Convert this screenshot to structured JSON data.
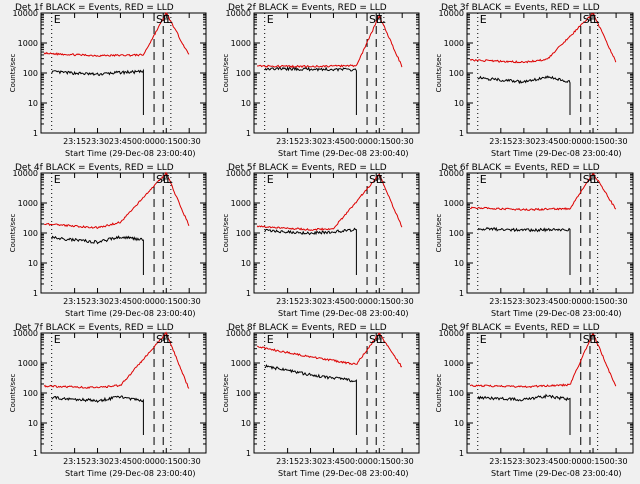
{
  "colors": {
    "events": "#000000",
    "lld": "#dd0000",
    "axes": "#000000",
    "background": "#f0f0f0"
  },
  "chart_data": [
    {
      "type": "line",
      "title": "Det 1f BLACK = Events, RED = LLD",
      "xlabel": "Start Time (29-Dec-08 23:00:40)",
      "ylabel": "Counts/sec",
      "yscale": "log",
      "ylim": [
        1,
        10000
      ],
      "yticks": [
        "1",
        "10",
        "100",
        "1000",
        "10000"
      ],
      "xticks": [
        "23:15",
        "23:30",
        "23:45",
        "00:00",
        "00:15",
        "00:30"
      ],
      "markers": [
        "E",
        "S",
        "E",
        "L"
      ],
      "series": [
        {
          "color": "#000000",
          "approx_values": [
            {
              "t": "23:00",
              "v": 110
            },
            {
              "t": "23:30",
              "v": 90
            },
            {
              "t": "23:45",
              "v": 105
            },
            {
              "t": "00:00",
              "v": 110
            }
          ]
        },
        {
          "color": "#dd0000",
          "approx_values": [
            {
              "t": "22:55",
              "v": 450
            },
            {
              "t": "23:30",
              "v": 380
            },
            {
              "t": "00:00",
              "v": 400
            },
            {
              "t": "00:15",
              "v": 10000
            },
            {
              "t": "00:30",
              "v": 380
            }
          ]
        }
      ]
    },
    {
      "type": "line",
      "title": "Det 2f BLACK = Events, RED = LLD",
      "xlabel": "Start Time (29-Dec-08 23:00:40)",
      "ylabel": "Counts/sec",
      "yscale": "log",
      "ylim": [
        1,
        10000
      ],
      "yticks": [
        "1",
        "10",
        "100",
        "1000",
        "10000"
      ],
      "xticks": [
        "23:15",
        "23:30",
        "23:45",
        "00:00",
        "00:15",
        "00:30"
      ],
      "markers": [
        "E",
        "S",
        "E",
        "L"
      ],
      "series": [
        {
          "color": "#000000",
          "approx_values": [
            {
              "t": "23:00",
              "v": 140
            },
            {
              "t": "23:30",
              "v": 135
            },
            {
              "t": "00:00",
              "v": 130
            }
          ]
        },
        {
          "color": "#dd0000",
          "approx_values": [
            {
              "t": "22:55",
              "v": 170
            },
            {
              "t": "23:30",
              "v": 165
            },
            {
              "t": "00:00",
              "v": 175
            },
            {
              "t": "00:15",
              "v": 8000
            },
            {
              "t": "00:30",
              "v": 160
            }
          ]
        }
      ]
    },
    {
      "type": "line",
      "title": "Det 3f BLACK = Events, RED = LLD",
      "xlabel": "Start Time (29-Dec-08 23:00:40)",
      "ylabel": "Counts/sec",
      "yscale": "log",
      "ylim": [
        1,
        10000
      ],
      "yticks": [
        "1",
        "10",
        "100",
        "1000",
        "10000"
      ],
      "xticks": [
        "23:15",
        "23:30",
        "23:45",
        "00:00",
        "00:15",
        "00:30"
      ],
      "markers": [
        "E",
        "S",
        "E",
        "L"
      ],
      "series": [
        {
          "color": "#000000",
          "approx_values": [
            {
              "t": "23:00",
              "v": 70
            },
            {
              "t": "23:30",
              "v": 50
            },
            {
              "t": "23:45",
              "v": 75
            },
            {
              "t": "00:00",
              "v": 50
            }
          ]
        },
        {
          "color": "#dd0000",
          "approx_values": [
            {
              "t": "22:55",
              "v": 270
            },
            {
              "t": "23:30",
              "v": 230
            },
            {
              "t": "23:45",
              "v": 280
            },
            {
              "t": "00:15",
              "v": 10000
            },
            {
              "t": "00:30",
              "v": 230
            }
          ]
        }
      ]
    },
    {
      "type": "line",
      "title": "Det 4f BLACK = Events, RED = LLD",
      "xlabel": "Start Time (29-Dec-08 23:00:40)",
      "ylabel": "Counts/sec",
      "yscale": "log",
      "ylim": [
        1,
        10000
      ],
      "yticks": [
        "1",
        "10",
        "100",
        "1000",
        "10000"
      ],
      "xticks": [
        "23:15",
        "23:30",
        "23:45",
        "00:00",
        "00:15",
        "00:30"
      ],
      "markers": [
        "E",
        "S",
        "E",
        "L"
      ],
      "series": [
        {
          "color": "#000000",
          "approx_values": [
            {
              "t": "23:00",
              "v": 70
            },
            {
              "t": "23:30",
              "v": 50
            },
            {
              "t": "23:45",
              "v": 75
            },
            {
              "t": "00:00",
              "v": 60
            }
          ]
        },
        {
          "color": "#dd0000",
          "approx_values": [
            {
              "t": "22:55",
              "v": 200
            },
            {
              "t": "23:30",
              "v": 150
            },
            {
              "t": "23:45",
              "v": 230
            },
            {
              "t": "00:15",
              "v": 10000
            },
            {
              "t": "00:30",
              "v": 170
            }
          ]
        }
      ]
    },
    {
      "type": "line",
      "title": "Det 5f BLACK = Events, RED = LLD",
      "xlabel": "Start Time (29-Dec-08 23:00:40)",
      "ylabel": "Counts/sec",
      "yscale": "log",
      "ylim": [
        1,
        10000
      ],
      "yticks": [
        "1",
        "10",
        "100",
        "1000",
        "10000"
      ],
      "xticks": [
        "23:15",
        "23:30",
        "23:45",
        "00:00",
        "00:15",
        "00:30"
      ],
      "markers": [
        "E",
        "S",
        "E",
        "L"
      ],
      "series": [
        {
          "color": "#000000",
          "approx_values": [
            {
              "t": "23:00",
              "v": 120
            },
            {
              "t": "23:30",
              "v": 100
            },
            {
              "t": "23:45",
              "v": 110
            },
            {
              "t": "00:00",
              "v": 130
            }
          ]
        },
        {
          "color": "#dd0000",
          "approx_values": [
            {
              "t": "22:55",
              "v": 170
            },
            {
              "t": "23:30",
              "v": 130
            },
            {
              "t": "23:45",
              "v": 140
            },
            {
              "t": "00:15",
              "v": 9000
            },
            {
              "t": "00:30",
              "v": 150
            }
          ]
        }
      ]
    },
    {
      "type": "line",
      "title": "Det 6f BLACK = Events, RED = LLD",
      "xlabel": "Start Time (29-Dec-08 23:00:40)",
      "ylabel": "Counts/sec",
      "yscale": "log",
      "ylim": [
        1,
        10000
      ],
      "yticks": [
        "1",
        "10",
        "100",
        "1000",
        "10000"
      ],
      "xticks": [
        "23:15",
        "23:30",
        "23:45",
        "00:00",
        "00:15",
        "00:30"
      ],
      "markers": [
        "E",
        "S",
        "E",
        "L"
      ],
      "series": [
        {
          "color": "#000000",
          "approx_values": [
            {
              "t": "23:00",
              "v": 140
            },
            {
              "t": "23:30",
              "v": 125
            },
            {
              "t": "00:00",
              "v": 130
            }
          ]
        },
        {
          "color": "#dd0000",
          "approx_values": [
            {
              "t": "22:55",
              "v": 700
            },
            {
              "t": "23:30",
              "v": 600
            },
            {
              "t": "00:00",
              "v": 650
            },
            {
              "t": "00:15",
              "v": 10000
            },
            {
              "t": "00:30",
              "v": 600
            }
          ]
        }
      ]
    },
    {
      "type": "line",
      "title": "Det 7f BLACK = Events, RED = LLD",
      "xlabel": "Start Time (29-Dec-08 23:00:40)",
      "ylabel": "Counts/sec",
      "yscale": "log",
      "ylim": [
        1,
        10000
      ],
      "yticks": [
        "1",
        "10",
        "100",
        "1000",
        "10000"
      ],
      "xticks": [
        "23:15",
        "23:30",
        "23:45",
        "00:00",
        "00:15",
        "00:30"
      ],
      "markers": [
        "E",
        "S",
        "E",
        "L"
      ],
      "series": [
        {
          "color": "#000000",
          "approx_values": [
            {
              "t": "23:00",
              "v": 70
            },
            {
              "t": "23:30",
              "v": 55
            },
            {
              "t": "23:45",
              "v": 75
            },
            {
              "t": "00:00",
              "v": 55
            }
          ]
        },
        {
          "color": "#dd0000",
          "approx_values": [
            {
              "t": "22:55",
              "v": 170
            },
            {
              "t": "23:30",
              "v": 150
            },
            {
              "t": "23:45",
              "v": 180
            },
            {
              "t": "00:15",
              "v": 10000
            },
            {
              "t": "00:30",
              "v": 130
            }
          ]
        }
      ]
    },
    {
      "type": "line",
      "title": "Det 8f BLACK = Events, RED = LLD",
      "xlabel": "Start Time (29-Dec-08 23:00:40)",
      "ylabel": "Counts/sec",
      "yscale": "log",
      "ylim": [
        1,
        10000
      ],
      "yticks": [
        "1",
        "10",
        "100",
        "1000",
        "10000"
      ],
      "xticks": [
        "23:15",
        "23:30",
        "23:45",
        "00:00",
        "00:15",
        "00:30"
      ],
      "markers": [
        "E",
        "S",
        "E",
        "L"
      ],
      "series": [
        {
          "color": "#000000",
          "approx_values": [
            {
              "t": "23:00",
              "v": 800
            },
            {
              "t": "23:30",
              "v": 400
            },
            {
              "t": "00:00",
              "v": 250
            }
          ]
        },
        {
          "color": "#dd0000",
          "approx_values": [
            {
              "t": "22:55",
              "v": 3500
            },
            {
              "t": "23:30",
              "v": 1600
            },
            {
              "t": "00:00",
              "v": 900
            },
            {
              "t": "00:15",
              "v": 10000
            },
            {
              "t": "00:30",
              "v": 700
            }
          ]
        }
      ]
    },
    {
      "type": "line",
      "title": "Det 9f BLACK = Events, RED = LLD",
      "xlabel": "Start Time (29-Dec-08 23:00:40)",
      "ylabel": "Counts/sec",
      "yscale": "log",
      "ylim": [
        1,
        10000
      ],
      "yticks": [
        "1",
        "10",
        "100",
        "1000",
        "10000"
      ],
      "xticks": [
        "23:15",
        "23:30",
        "23:45",
        "00:00",
        "00:15",
        "00:30"
      ],
      "markers": [
        "E",
        "S",
        "E",
        "L"
      ],
      "series": [
        {
          "color": "#000000",
          "approx_values": [
            {
              "t": "23:00",
              "v": 70
            },
            {
              "t": "23:30",
              "v": 60
            },
            {
              "t": "23:45",
              "v": 80
            },
            {
              "t": "00:00",
              "v": 60
            }
          ]
        },
        {
          "color": "#dd0000",
          "approx_values": [
            {
              "t": "22:55",
              "v": 180
            },
            {
              "t": "23:30",
              "v": 160
            },
            {
              "t": "00:00",
              "v": 190
            },
            {
              "t": "00:15",
              "v": 10000
            },
            {
              "t": "00:30",
              "v": 150
            }
          ]
        }
      ]
    }
  ]
}
